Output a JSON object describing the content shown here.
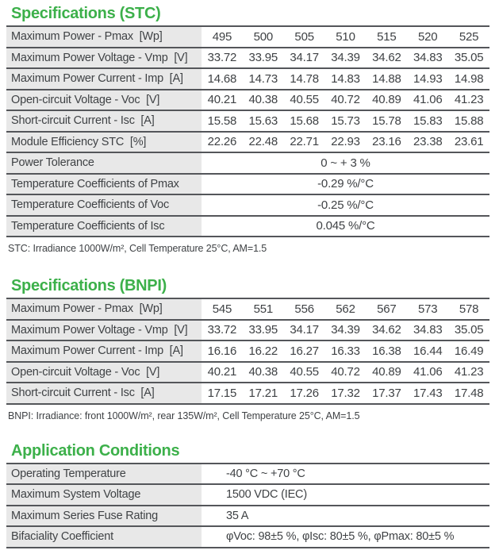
{
  "page": {
    "accent_green": "#3cb04a",
    "label_bg": "#e8e8e8",
    "line_color": "#54565a"
  },
  "stc": {
    "title": "Specifications (STC)",
    "rows": [
      {
        "label": "Maximum Power - Pmax  [Wp]",
        "values": [
          "495",
          "500",
          "505",
          "510",
          "515",
          "520",
          "525"
        ]
      },
      {
        "label": "Maximum Power Voltage - Vmp  [V]",
        "values": [
          "33.72",
          "33.95",
          "34.17",
          "34.39",
          "34.62",
          "34.83",
          "35.05"
        ]
      },
      {
        "label": "Maximum Power Current - Imp  [A]",
        "values": [
          "14.68",
          "14.73",
          "14.78",
          "14.83",
          "14.88",
          "14.93",
          "14.98"
        ]
      },
      {
        "label": "Open-circuit Voltage - Voc  [V]",
        "values": [
          "40.21",
          "40.38",
          "40.55",
          "40.72",
          "40.89",
          "41.06",
          "41.23"
        ]
      },
      {
        "label": "Short-circuit Current - Isc  [A]",
        "values": [
          "15.58",
          "15.63",
          "15.68",
          "15.73",
          "15.78",
          "15.83",
          "15.88"
        ]
      },
      {
        "label": "Module Efficiency STC  [%]",
        "values": [
          "22.26",
          "22.48",
          "22.71",
          "22.93",
          "23.16",
          "23.38",
          "23.61"
        ]
      }
    ],
    "singles": [
      {
        "label": "Power Tolerance",
        "value": "0 ~ + 3 %"
      },
      {
        "label": "Temperature Coefficients of Pmax",
        "value": "-0.29 %/°C"
      },
      {
        "label": "Temperature Coefficients of Voc",
        "value": "-0.25 %/°C"
      },
      {
        "label": "Temperature Coefficients of Isc",
        "value": "0.045 %/°C"
      }
    ],
    "footnote": "STC: Irradiance 1000W/m², Cell Temperature 25°C, AM=1.5"
  },
  "bnpi": {
    "title": "Specifications (BNPI)",
    "rows": [
      {
        "label": "Maximum Power - Pmax  [Wp]",
        "values": [
          "545",
          "551",
          "556",
          "562",
          "567",
          "573",
          "578"
        ]
      },
      {
        "label": "Maximum Power Voltage - Vmp  [V]",
        "values": [
          "33.72",
          "33.95",
          "34.17",
          "34.39",
          "34.62",
          "34.83",
          "35.05"
        ]
      },
      {
        "label": "Maximum Power Current - Imp  [A]",
        "values": [
          "16.16",
          "16.22",
          "16.27",
          "16.33",
          "16.38",
          "16.44",
          "16.49"
        ]
      },
      {
        "label": "Open-circuit Voltage - Voc  [V]",
        "values": [
          "40.21",
          "40.38",
          "40.55",
          "40.72",
          "40.89",
          "41.06",
          "41.23"
        ]
      },
      {
        "label": "Short-circuit Current - Isc  [A]",
        "values": [
          "17.15",
          "17.21",
          "17.26",
          "17.32",
          "17.37",
          "17.43",
          "17.48"
        ]
      }
    ],
    "footnote": "BNPI: Irradiance: front 1000W/m², rear 135W/m², Cell Temperature 25°C, AM=1.5"
  },
  "app": {
    "title": "Application Conditions",
    "rows": [
      {
        "label": "Operating Temperature",
        "value": "-40 °C ~ +70 °C"
      },
      {
        "label": "Maximum System Voltage",
        "value": "1500 VDC (IEC)"
      },
      {
        "label": "Maximum Series Fuse Rating",
        "value": "35 A"
      },
      {
        "label": "Bifaciality Coefficient",
        "value": "φVoc: 98±5 %, φIsc: 80±5 %, φPmax: 80±5 %"
      }
    ]
  }
}
